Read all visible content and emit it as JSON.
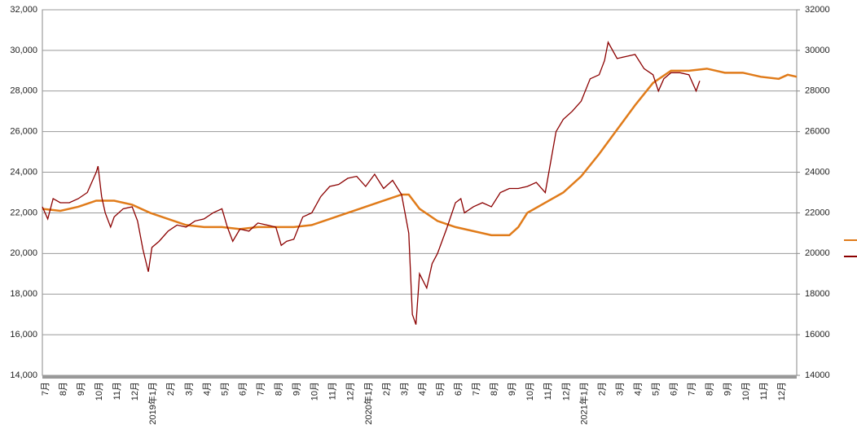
{
  "chart_data": {
    "type": "line",
    "categories": [
      "7月",
      "8月",
      "9月",
      "10月",
      "11月",
      "12月",
      "2019年1月",
      "2月",
      "3月",
      "4月",
      "5月",
      "6月",
      "7月",
      "8月",
      "9月",
      "10月",
      "11月",
      "12月",
      "2020年1月",
      "2月",
      "3月",
      "4月",
      "5月",
      "6月",
      "7月",
      "8月",
      "9月",
      "10月",
      "11月",
      "12月",
      "2021年1月",
      "2月",
      "3月",
      "4月",
      "5月",
      "6月",
      "7月",
      "8月",
      "9月",
      "10月",
      "11月",
      "12月"
    ],
    "xlim": [
      0,
      42
    ],
    "ylim": [
      14000,
      32000
    ],
    "yticks": [
      {
        "value": 14000,
        "label": "14,000"
      },
      {
        "value": 16000,
        "label": "16,000"
      },
      {
        "value": 18000,
        "label": "18,000"
      },
      {
        "value": 20000,
        "label": "20,000"
      },
      {
        "value": 22000,
        "label": "22,000"
      },
      {
        "value": 24000,
        "label": "24,000"
      },
      {
        "value": 26000,
        "label": "26,000"
      },
      {
        "value": 28000,
        "label": "28,000"
      },
      {
        "value": 30000,
        "label": "30,000"
      },
      {
        "value": 32000,
        "label": "32,000"
      }
    ],
    "y2lim": [
      14000,
      32000
    ],
    "y2ticks": [
      14000,
      16000,
      18000,
      20000,
      22000,
      24000,
      26000,
      28000,
      30000,
      32000
    ],
    "grid": true,
    "series": [
      {
        "color": "#e07b1a",
        "axis": "y2",
        "x": [
          0,
          1,
          2,
          3,
          4,
          5,
          6,
          7,
          8,
          9,
          10,
          11,
          12,
          13,
          14,
          15,
          16,
          17,
          18,
          19,
          20,
          20.4,
          21,
          22,
          23,
          24,
          25,
          26,
          26.5,
          27,
          28,
          29,
          30,
          31,
          32,
          33,
          34,
          35,
          36,
          37,
          38,
          39,
          40,
          41,
          41.5,
          42
        ],
        "values": [
          22200,
          22100,
          22300,
          22600,
          22600,
          22400,
          22000,
          21700,
          21400,
          21300,
          21300,
          21200,
          21300,
          21300,
          21300,
          21400,
          21700,
          22000,
          22300,
          22600,
          22900,
          22900,
          22200,
          21600,
          21300,
          21100,
          20900,
          20900,
          21300,
          22000,
          22500,
          23000,
          23800,
          24900,
          26100,
          27300,
          28400,
          29000,
          29000,
          29100,
          28900,
          28900,
          28700,
          28600,
          28800,
          28700
        ]
      },
      {
        "color": "#8b0000",
        "x": [
          0,
          0.3,
          0.6,
          1.0,
          1.5,
          2.0,
          2.5,
          3.0,
          3.1,
          3.3,
          3.5,
          3.8,
          4.0,
          4.5,
          5.0,
          5.3,
          5.6,
          5.9,
          6.1,
          6.5,
          7.0,
          7.5,
          8.0,
          8.5,
          9.0,
          9.5,
          10.0,
          10.3,
          10.6,
          11.0,
          11.5,
          12.0,
          12.5,
          13.0,
          13.3,
          13.6,
          14.0,
          14.5,
          15.0,
          15.5,
          16.0,
          16.5,
          17.0,
          17.5,
          18.0,
          18.5,
          19.0,
          19.5,
          20.0,
          20.4,
          20.6,
          20.8,
          21.0,
          21.4,
          21.7,
          22.0,
          22.5,
          23.0,
          23.3,
          23.5,
          24.0,
          24.5,
          25.0,
          25.5,
          26.0,
          26.5,
          27.0,
          27.5,
          28.0,
          28.3,
          28.6,
          29.0,
          29.5,
          30.0,
          30.5,
          31.0,
          31.3,
          31.5,
          32.0,
          32.5,
          33.0,
          33.5,
          34.0,
          34.3,
          34.6,
          35.0,
          35.5,
          36.0,
          36.4,
          36.6
        ],
        "values": [
          22300,
          21700,
          22700,
          22500,
          22500,
          22700,
          23000,
          24000,
          24300,
          22800,
          22000,
          21300,
          21800,
          22200,
          22300,
          21600,
          20200,
          19100,
          20300,
          20600,
          21100,
          21400,
          21300,
          21600,
          21700,
          22000,
          22200,
          21300,
          20600,
          21200,
          21100,
          21500,
          21400,
          21300,
          20400,
          20600,
          20700,
          21800,
          22000,
          22800,
          23300,
          23400,
          23700,
          23800,
          23300,
          23900,
          23200,
          23600,
          22900,
          21000,
          17000,
          16500,
          19000,
          18300,
          19500,
          20000,
          21200,
          22500,
          22700,
          22000,
          22300,
          22500,
          22300,
          23000,
          23200,
          23200,
          23300,
          23500,
          23000,
          24500,
          26000,
          26600,
          27000,
          27500,
          28600,
          28800,
          29500,
          30400,
          29600,
          29700,
          29800,
          29100,
          28800,
          28000,
          28600,
          28900,
          28900,
          28800,
          28000,
          28500
        ]
      }
    ]
  }
}
